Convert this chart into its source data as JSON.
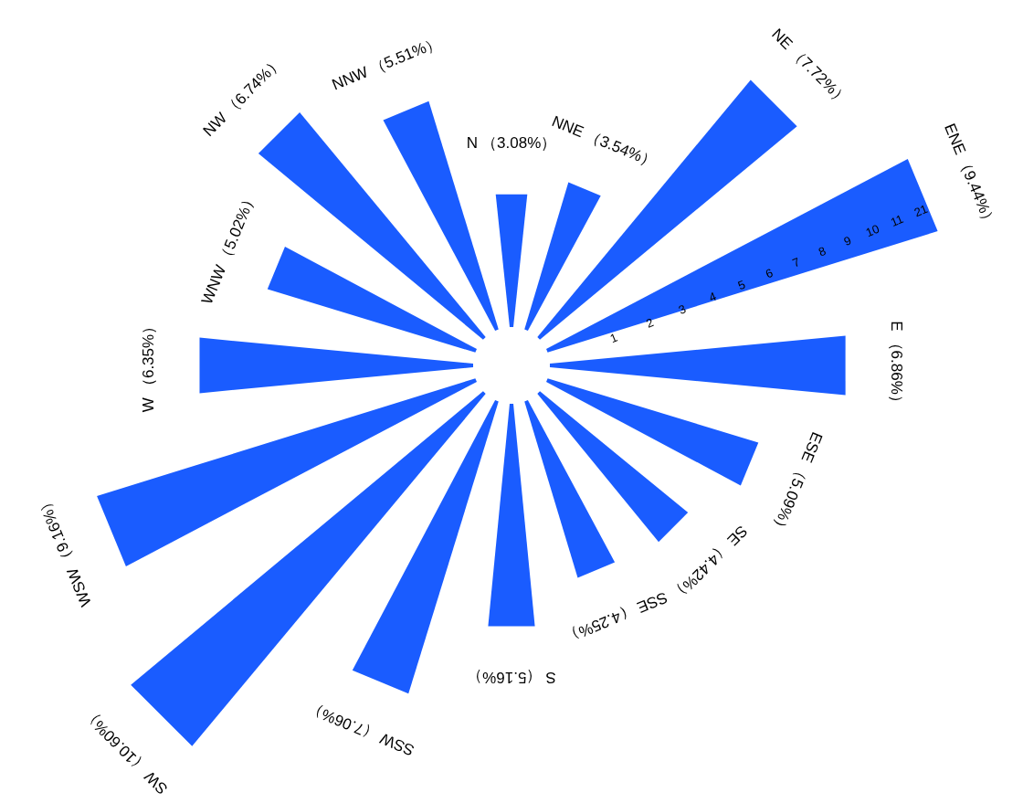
{
  "chart_data": {
    "type": "other",
    "categories": [
      "N",
      "NNE",
      "NE",
      "ENE",
      "E",
      "ESE",
      "SE",
      "SSE",
      "S",
      "SSW",
      "SW",
      "WSW",
      "W",
      "WNW",
      "NW",
      "NNW"
    ],
    "values": [
      3.08,
      3.54,
      7.72,
      9.44,
      6.86,
      5.09,
      4.42,
      4.25,
      5.16,
      7.06,
      10.6,
      9.16,
      6.35,
      5.02,
      6.74,
      5.51
    ],
    "value_labels": [
      "（3.08%）",
      "（3.54%）",
      "（7.72%）",
      "（9.44%）",
      "（6.86%）",
      "（5.09%）",
      "（4.42%）",
      "（4.25%）",
      "（5.16%）",
      "（7.06%）",
      "（10.60%）",
      "（9.16%）",
      "（6.35%）",
      "（5.02%）",
      "（6.74%）",
      "（5.51%）"
    ],
    "color": "#1a5cff",
    "annotations": [
      {
        "text": "1",
        "x": "ENE"
      },
      {
        "text": "2",
        "x": "ENE"
      },
      {
        "text": "3",
        "x": "ENE"
      },
      {
        "text": "4",
        "x": "ENE"
      },
      {
        "text": "5",
        "x": "ENE"
      },
      {
        "text": "6",
        "x": "ENE"
      },
      {
        "text": "7",
        "x": "ENE"
      },
      {
        "text": "8",
        "x": "ENE"
      },
      {
        "text": "9",
        "x": "ENE"
      },
      {
        "text": "10",
        "x": "ENE"
      },
      {
        "text": "11",
        "x": "ENE"
      },
      {
        "text": "21",
        "x": "ENE"
      }
    ]
  }
}
